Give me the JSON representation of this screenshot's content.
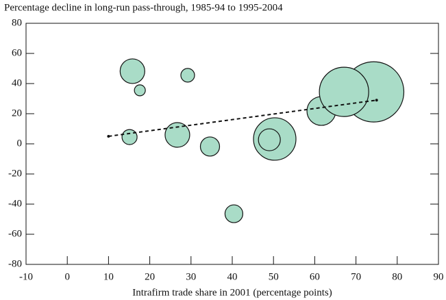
{
  "chart_data": {
    "type": "scatter",
    "title": "Percentage decline in long-run pass-through, 1985-94 to 1995-2004",
    "x_label": "Intrafirm trade share in 2001 (percentage points)",
    "color": "#a9dcc7",
    "x": [
      15.8,
      17.6,
      29.2,
      15.1,
      26.7,
      34.6,
      40.4,
      50.3,
      49,
      61.6,
      74.3,
      67.1
    ],
    "y": [
      48.2,
      35.5,
      45.5,
      4.5,
      5.9,
      -1.8,
      -46.4,
      3.2,
      2.7,
      21.8,
      34.5,
      34.5
    ],
    "sizes": [
      18,
      8,
      10,
      11,
      18,
      14,
      13,
      31,
      16,
      21,
      44,
      36
    ],
    "trendline": {
      "x": [
        10,
        75
      ],
      "y": [
        5,
        29
      ]
    },
    "xlim": [
      -10,
      90
    ],
    "xticks": [
      -10,
      0,
      10,
      20,
      30,
      40,
      50,
      60,
      70,
      80,
      90
    ],
    "ylim": [
      -80,
      80
    ],
    "yticks": [
      -80,
      -60,
      -40,
      -20,
      0,
      20,
      40,
      60,
      80
    ]
  }
}
